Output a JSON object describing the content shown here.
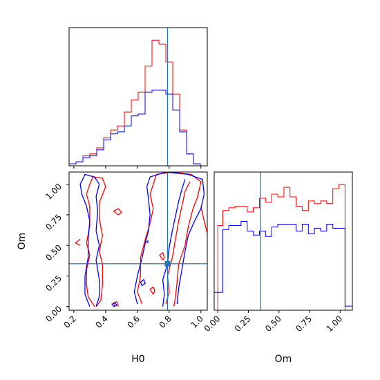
{
  "chart_data": [
    {
      "type": "histogram",
      "panel": "H0 marginal",
      "x_range": [
        0.17,
        1.04
      ],
      "truth": 0.79,
      "bin_edges": [
        0.17,
        0.2135,
        0.257,
        0.3005,
        0.344,
        0.3875,
        0.431,
        0.4745,
        0.518,
        0.5615,
        0.605,
        0.6485,
        0.692,
        0.7355,
        0.779,
        0.8225,
        0.866,
        0.9095,
        0.953,
        0.9965,
        1.04
      ],
      "series": [
        {
          "color": "#ff0000",
          "values": [
            1,
            2,
            5,
            6,
            9,
            14,
            18,
            20,
            27,
            33,
            37,
            50,
            63,
            61,
            52,
            36,
            18,
            6,
            1,
            0
          ]
        },
        {
          "color": "#0000ff",
          "values": [
            1,
            2,
            4,
            5,
            8,
            13,
            16,
            17,
            20,
            25,
            26,
            37,
            38,
            38,
            36,
            28,
            17,
            6,
            1,
            0
          ]
        }
      ]
    },
    {
      "type": "contour",
      "panel": "H0 vs Om",
      "xlabel": "H0",
      "ylabel": "Om",
      "x_range": [
        0.17,
        1.04
      ],
      "y_range": [
        -0.03,
        1.1
      ],
      "x_ticks": [
        "0.2",
        "0.4",
        "0.6",
        "0.8",
        "1.0"
      ],
      "y_ticks": [
        "0.00",
        "0.25",
        "0.50",
        "0.75",
        "1.00"
      ],
      "truth": [
        0.79,
        0.35
      ],
      "series": [
        {
          "color": "#ff0000",
          "contours": [
            [
              [
                0.33,
                0.0
              ],
              [
                0.29,
                0.08
              ],
              [
                0.28,
                0.18
              ],
              [
                0.28,
                0.3
              ],
              [
                0.3,
                0.42
              ],
              [
                0.28,
                0.52
              ],
              [
                0.3,
                0.66
              ],
              [
                0.3,
                0.82
              ],
              [
                0.28,
                0.92
              ],
              [
                0.3,
                1.0
              ],
              [
                0.32,
                1.06
              ],
              [
                0.38,
                1.05
              ],
              [
                0.4,
                0.98
              ],
              [
                0.36,
                0.85
              ],
              [
                0.36,
                0.72
              ],
              [
                0.38,
                0.58
              ],
              [
                0.36,
                0.45
              ],
              [
                0.38,
                0.35
              ],
              [
                0.38,
                0.18
              ],
              [
                0.37,
                0.05
              ],
              [
                0.34,
                0.0
              ]
            ],
            [
              [
                0.24,
                0.5
              ],
              [
                0.21,
                0.52
              ],
              [
                0.24,
                0.55
              ]
            ],
            [
              [
                0.48,
                0.75
              ],
              [
                0.45,
                0.78
              ],
              [
                0.48,
                0.8
              ],
              [
                0.5,
                0.77
              ],
              [
                0.48,
                0.75
              ]
            ],
            [
              [
                0.46,
                0.0
              ],
              [
                0.45,
                0.03
              ],
              [
                0.47,
                0.04
              ],
              [
                0.48,
                0.0
              ]
            ],
            [
              [
                0.63,
                0.02
              ],
              [
                0.6,
                0.12
              ],
              [
                0.62,
                0.25
              ],
              [
                0.62,
                0.4
              ],
              [
                0.65,
                0.55
              ],
              [
                0.68,
                0.68
              ],
              [
                0.7,
                0.8
              ],
              [
                0.68,
                0.92
              ],
              [
                0.7,
                1.0
              ],
              [
                0.72,
                1.08
              ],
              [
                0.82,
                1.1
              ],
              [
                0.94,
                1.08
              ],
              [
                1.0,
                1.02
              ],
              [
                0.98,
                0.9
              ],
              [
                0.95,
                0.8
              ],
              [
                0.92,
                0.65
              ],
              [
                0.9,
                0.5
              ],
              [
                0.86,
                0.35
              ],
              [
                0.85,
                0.2
              ],
              [
                0.84,
                0.08
              ],
              [
                0.83,
                0.0
              ]
            ],
            [
              [
                0.78,
                0.02
              ],
              [
                0.8,
                0.12
              ],
              [
                0.79,
                0.25
              ],
              [
                0.82,
                0.4
              ],
              [
                0.84,
                0.55
              ],
              [
                0.86,
                0.7
              ],
              [
                0.88,
                0.82
              ],
              [
                0.9,
                0.94
              ],
              [
                0.93,
                1.02
              ]
            ],
            [
              [
                0.7,
                0.1
              ],
              [
                0.68,
                0.14
              ],
              [
                0.7,
                0.16
              ],
              [
                0.71,
                0.13
              ],
              [
                0.7,
                0.1
              ]
            ],
            [
              [
                0.76,
                0.38
              ],
              [
                0.74,
                0.42
              ],
              [
                0.76,
                0.44
              ],
              [
                0.77,
                0.4
              ],
              [
                0.76,
                0.38
              ]
            ],
            [
              [
                1.0,
                0.82
              ],
              [
                1.02,
                0.7
              ],
              [
                1.04,
                0.6
              ]
            ]
          ]
        },
        {
          "color": "#0000ff",
          "contours": [
            [
              [
                0.3,
                0.0
              ],
              [
                0.27,
                0.1
              ],
              [
                0.27,
                0.25
              ],
              [
                0.29,
                0.4
              ],
              [
                0.29,
                0.55
              ],
              [
                0.3,
                0.7
              ],
              [
                0.28,
                0.82
              ],
              [
                0.25,
                0.92
              ],
              [
                0.24,
                1.0
              ],
              [
                0.27,
                1.08
              ],
              [
                0.33,
                1.06
              ],
              [
                0.36,
                1.0
              ],
              [
                0.34,
                0.9
              ],
              [
                0.35,
                0.78
              ],
              [
                0.34,
                0.62
              ],
              [
                0.36,
                0.5
              ],
              [
                0.34,
                0.38
              ],
              [
                0.36,
                0.22
              ],
              [
                0.36,
                0.08
              ],
              [
                0.34,
                0.0
              ]
            ],
            [
              [
                0.6,
                0.02
              ],
              [
                0.58,
                0.12
              ],
              [
                0.6,
                0.25
              ],
              [
                0.63,
                0.4
              ],
              [
                0.65,
                0.52
              ],
              [
                0.67,
                0.62
              ],
              [
                0.68,
                0.75
              ],
              [
                0.67,
                0.88
              ],
              [
                0.66,
                0.98
              ],
              [
                0.68,
                1.06
              ],
              [
                0.78,
                1.1
              ],
              [
                0.92,
                1.08
              ],
              [
                1.01,
                1.04
              ],
              [
                1.02,
                0.92
              ],
              [
                1.0,
                0.8
              ],
              [
                0.96,
                0.7
              ],
              [
                0.92,
                0.58
              ],
              [
                0.9,
                0.45
              ],
              [
                0.88,
                0.3
              ],
              [
                0.86,
                0.15
              ],
              [
                0.85,
                0.02
              ]
            ],
            [
              [
                0.76,
                0.0
              ],
              [
                0.77,
                0.1
              ],
              [
                0.76,
                0.22
              ],
              [
                0.79,
                0.35
              ],
              [
                0.8,
                0.48
              ],
              [
                0.82,
                0.62
              ],
              [
                0.84,
                0.74
              ],
              [
                0.86,
                0.86
              ],
              [
                0.88,
                0.96
              ],
              [
                0.9,
                1.04
              ]
            ],
            [
              [
                0.45,
                0.0
              ],
              [
                0.44,
                0.02
              ],
              [
                0.46,
                0.03
              ],
              [
                0.47,
                0.01
              ],
              [
                0.45,
                0.0
              ]
            ],
            [
              [
                0.67,
                0.52
              ],
              [
                0.66,
                0.53
              ],
              [
                0.67,
                0.54
              ]
            ],
            [
              [
                0.63,
                0.17
              ],
              [
                0.62,
                0.2
              ],
              [
                0.64,
                0.22
              ],
              [
                0.65,
                0.19
              ],
              [
                0.63,
                0.17
              ]
            ]
          ]
        }
      ]
    },
    {
      "type": "histogram",
      "panel": "Om marginal",
      "xlabel": "Om",
      "x_range": [
        -0.03,
        1.1
      ],
      "x_ticks": [
        "0.00",
        "0.25",
        "0.50",
        "0.75",
        "1.00"
      ],
      "truth": 0.35,
      "bin_edges": [
        -0.03,
        0.0,
        0.04,
        0.09,
        0.14,
        0.19,
        0.24,
        0.29,
        0.34,
        0.39,
        0.44,
        0.49,
        0.54,
        0.59,
        0.64,
        0.69,
        0.74,
        0.79,
        0.84,
        0.89,
        0.94,
        0.99,
        1.04,
        1.1
      ],
      "series": [
        {
          "color": "#ff0000",
          "values": [
            0,
            62,
            73,
            75,
            76,
            76,
            72,
            75,
            82,
            79,
            85,
            83,
            90,
            83,
            76,
            73,
            80,
            78,
            80,
            78,
            89,
            92,
            0
          ]
        },
        {
          "color": "#0000ff",
          "values": [
            13,
            13,
            59,
            62,
            62,
            65,
            58,
            55,
            58,
            54,
            61,
            63,
            63,
            63,
            58,
            63,
            56,
            60,
            58,
            63,
            60,
            60,
            3
          ]
        }
      ]
    }
  ]
}
